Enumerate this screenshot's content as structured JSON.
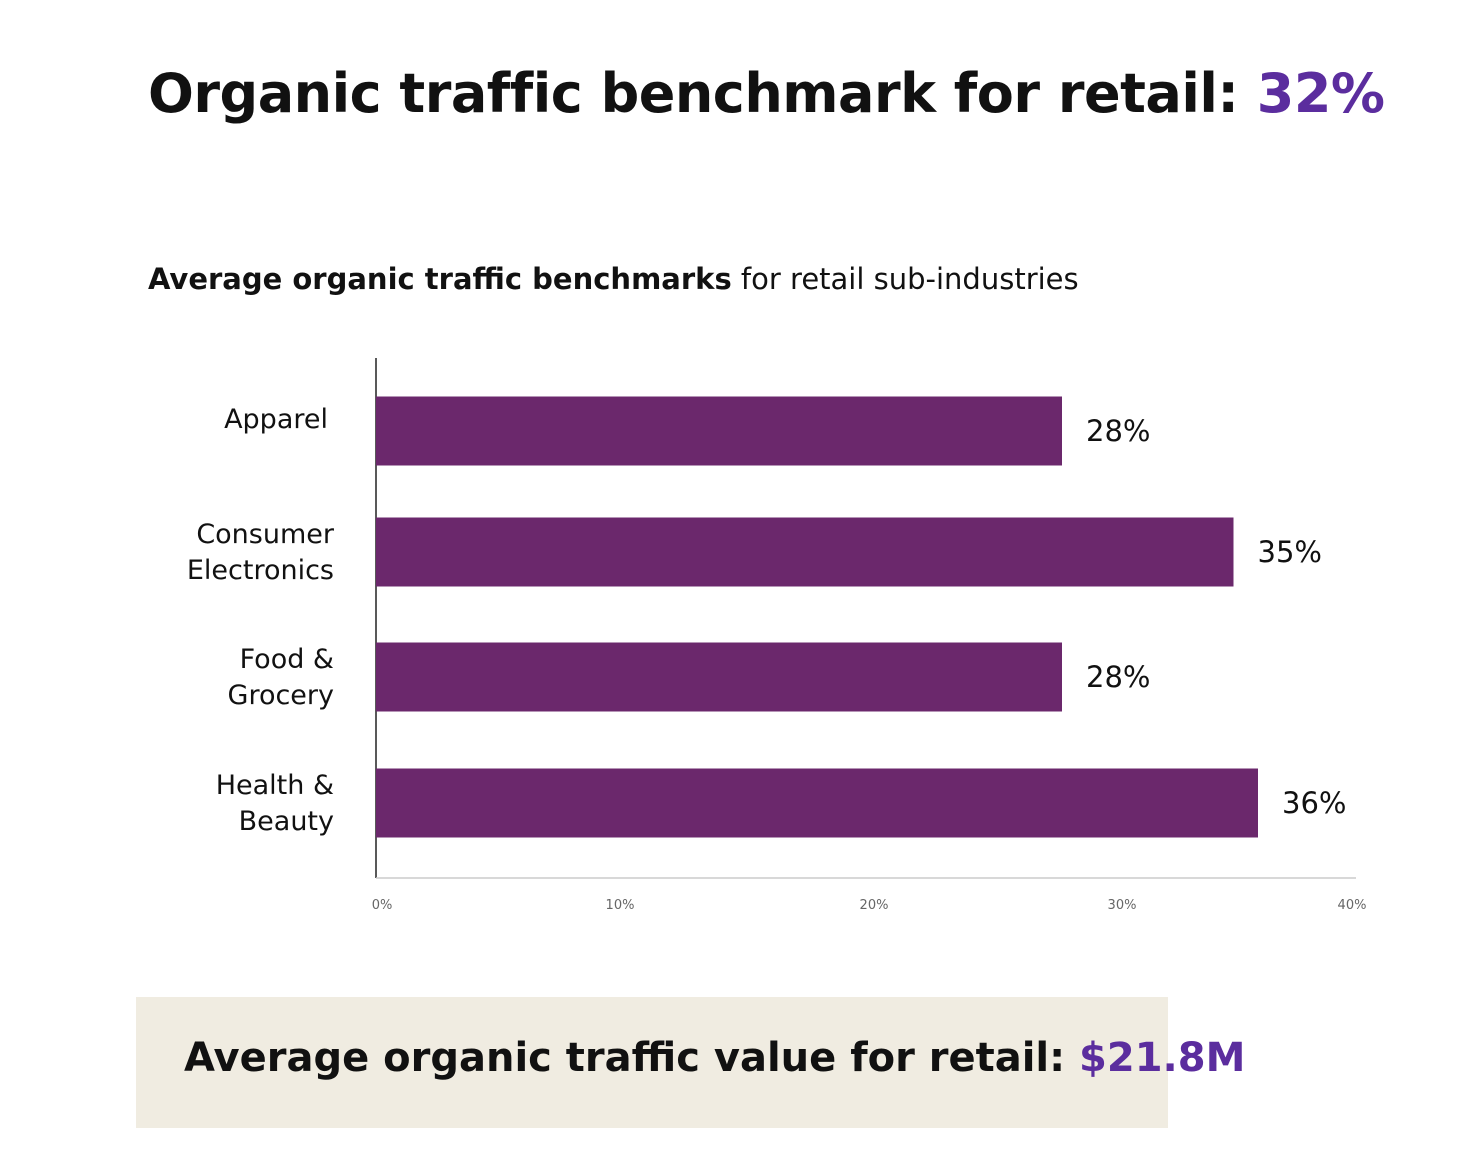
{
  "header": {
    "title_prefix": "Organic traffic benchmark for retail: ",
    "title_value": "32%",
    "subtitle_bold": "Average organic traffic benchmarks",
    "subtitle_rest": " for retail sub-industries"
  },
  "colors": {
    "accent": "#5b2d9e",
    "bar": "#6b286c",
    "summary_bg": "#f0ece1"
  },
  "chart_data": {
    "type": "bar",
    "orientation": "horizontal",
    "categories": [
      [
        "Apparel"
      ],
      [
        "Consumer",
        "Electronics"
      ],
      [
        "Food &",
        "Grocery"
      ],
      [
        "Health &",
        "Beauty"
      ]
    ],
    "values": [
      28,
      35,
      28,
      36
    ],
    "value_labels": [
      "28%",
      "35%",
      "28%",
      "36%"
    ],
    "xlim": [
      0,
      40
    ],
    "xticks": [
      "0%",
      "10%",
      "20%",
      "30%",
      "40%"
    ],
    "xlabel": "",
    "ylabel": "",
    "grid": false
  },
  "summary": {
    "label": "Average organic traffic value for retail: ",
    "value": "$21.8M"
  }
}
